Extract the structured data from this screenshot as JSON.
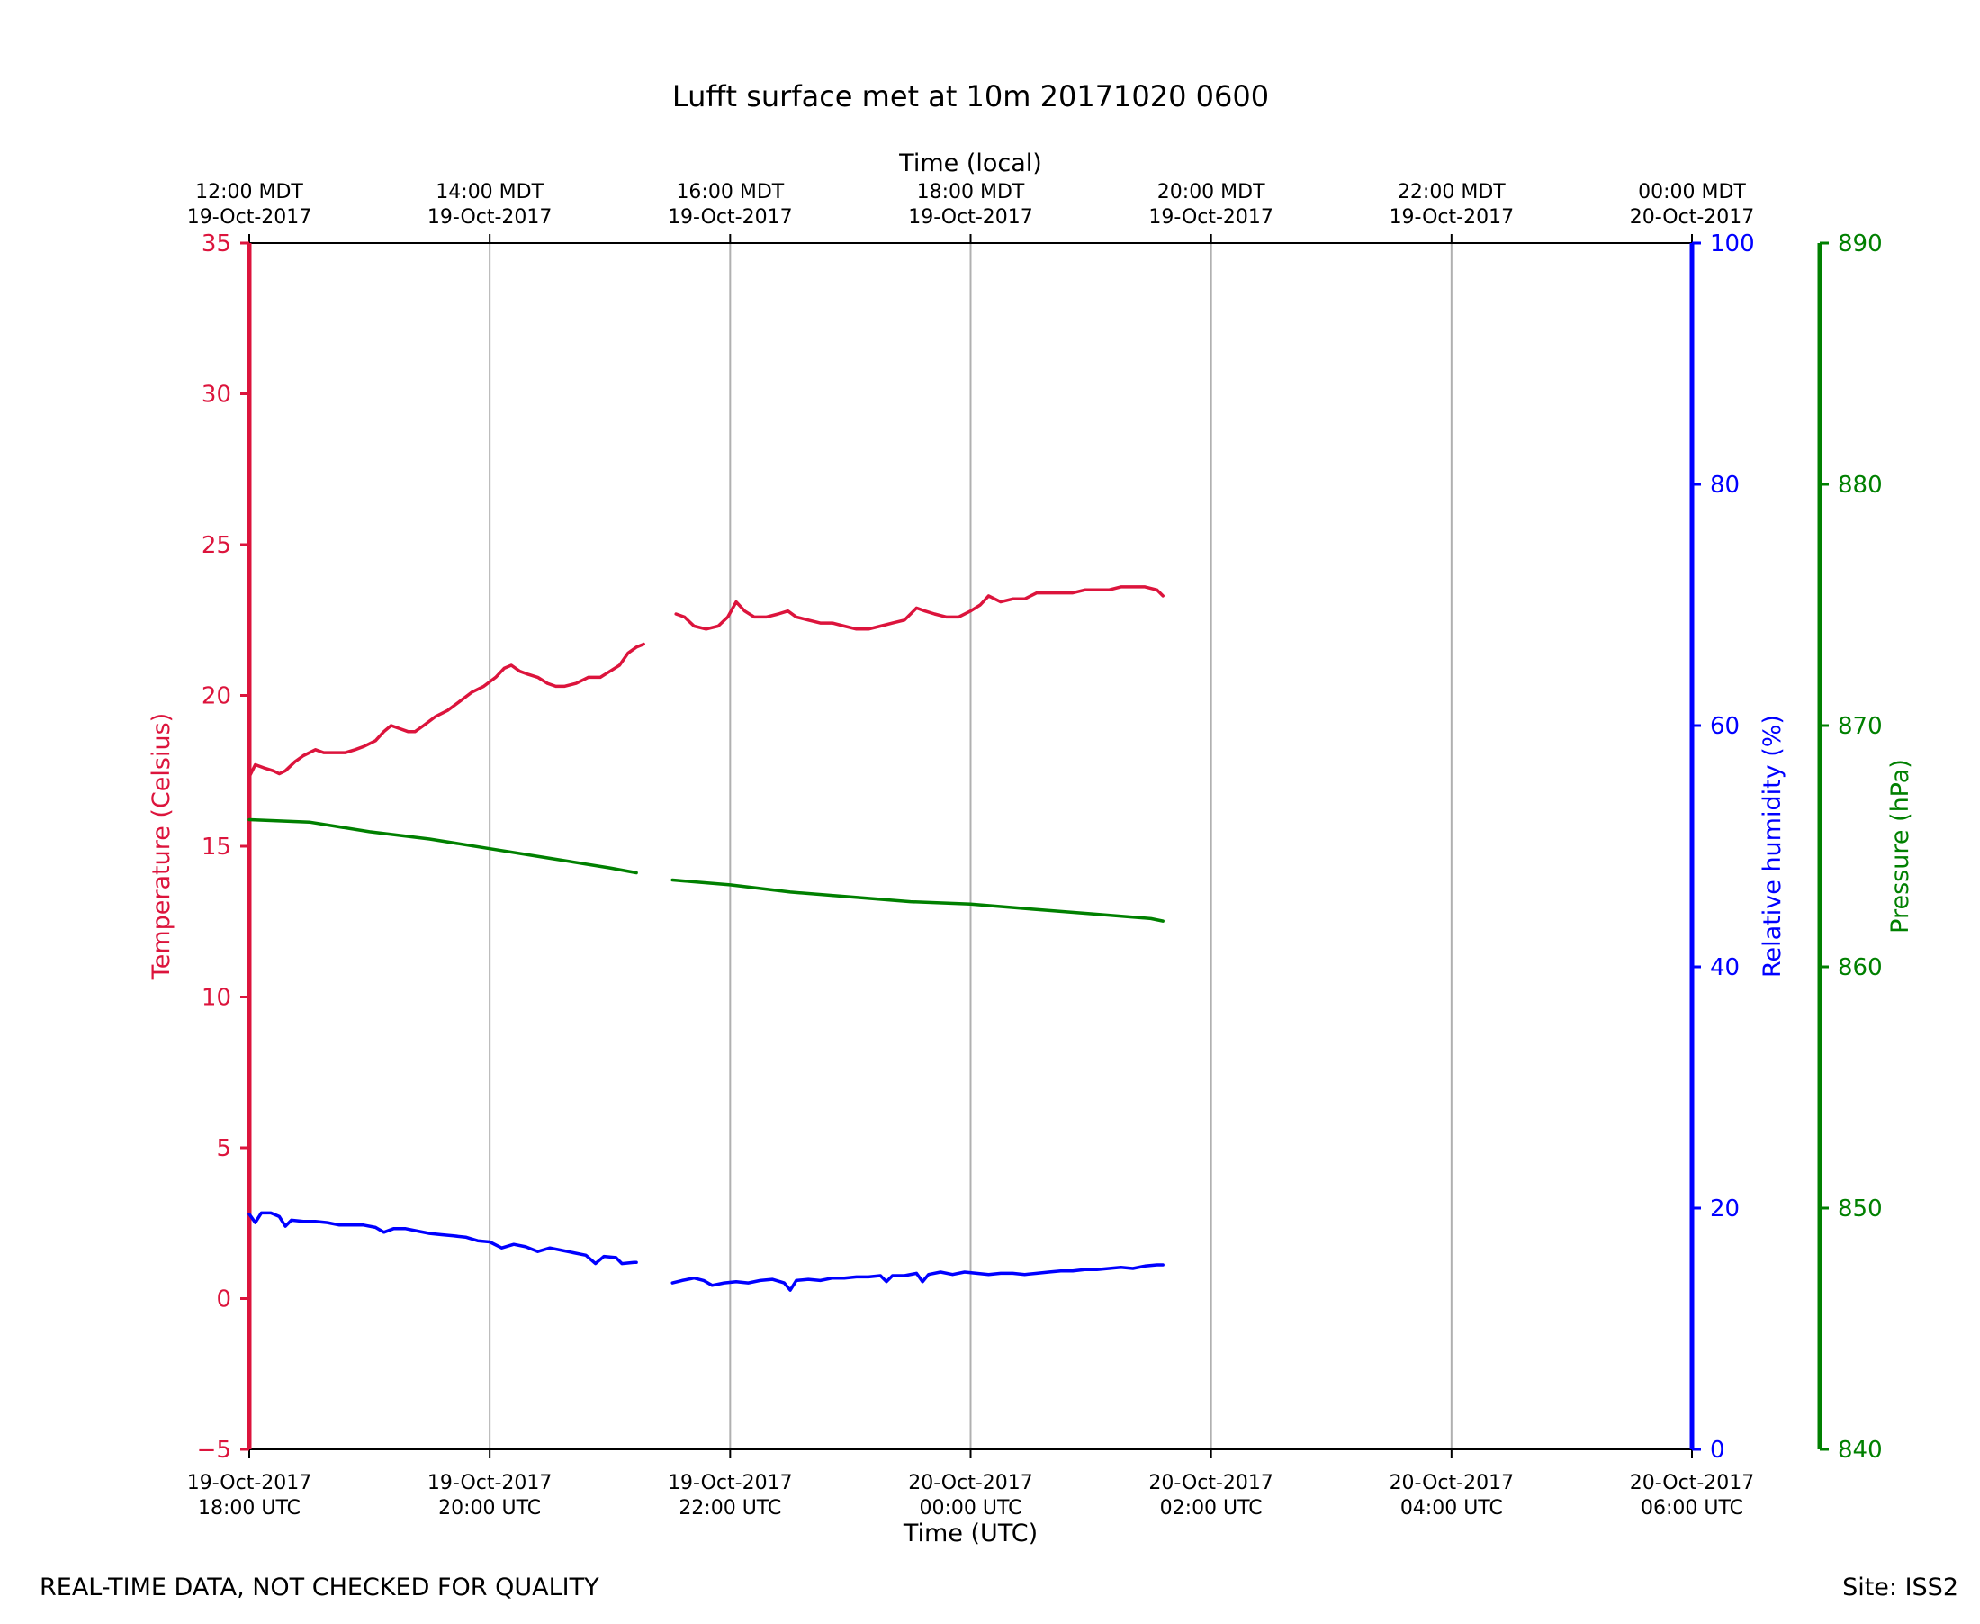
{
  "chart_data": {
    "type": "line",
    "title": "Lufft surface met at 10m 20171020 0600",
    "xlabel": "Time (UTC)",
    "x2label": "Time (local)",
    "x_ticks_utc": [
      [
        "19-Oct-2017",
        "18:00 UTC"
      ],
      [
        "19-Oct-2017",
        "20:00 UTC"
      ],
      [
        "19-Oct-2017",
        "22:00 UTC"
      ],
      [
        "20-Oct-2017",
        "00:00 UTC"
      ],
      [
        "20-Oct-2017",
        "02:00 UTC"
      ],
      [
        "20-Oct-2017",
        "04:00 UTC"
      ],
      [
        "20-Oct-2017",
        "06:00 UTC"
      ]
    ],
    "x_ticks_local": [
      [
        "12:00 MDT",
        "19-Oct-2017"
      ],
      [
        "14:00 MDT",
        "19-Oct-2017"
      ],
      [
        "16:00 MDT",
        "19-Oct-2017"
      ],
      [
        "18:00 MDT",
        "19-Oct-2017"
      ],
      [
        "20:00 MDT",
        "19-Oct-2017"
      ],
      [
        "22:00 MDT",
        "19-Oct-2017"
      ],
      [
        "00:00 MDT",
        "20-Oct-2017"
      ]
    ],
    "x_unit": "hours since 19-Oct-2017 18:00 UTC",
    "xlim": [
      0,
      12
    ],
    "grid": "vertical",
    "axes": [
      {
        "id": "temp",
        "label": "Temperature (Celsius)",
        "color": "#dc143c",
        "side": "left",
        "ylim": [
          -5,
          35
        ],
        "ticks": [
          "−5",
          "0",
          "5",
          "10",
          "15",
          "20",
          "25",
          "30",
          "35"
        ],
        "tick_values": [
          -5,
          0,
          5,
          10,
          15,
          20,
          25,
          30,
          35
        ]
      },
      {
        "id": "rh",
        "label": "Relative humidity (%)",
        "color": "#0000ff",
        "side": "right",
        "ylim": [
          0,
          100
        ],
        "ticks": [
          "0",
          "20",
          "40",
          "60",
          "80",
          "100"
        ],
        "tick_values": [
          0,
          20,
          40,
          60,
          80,
          100
        ]
      },
      {
        "id": "pres",
        "label": "Pressure (hPa)",
        "color": "#008000",
        "side": "right-outer",
        "ylim": [
          840,
          890
        ],
        "ticks": [
          "840",
          "850",
          "860",
          "870",
          "880",
          "890"
        ],
        "tick_values": [
          840,
          850,
          860,
          870,
          880,
          890
        ]
      }
    ],
    "series": [
      {
        "axis": "temp",
        "color": "#dc143c",
        "segments": [
          [
            [
              0.0,
              17.3
            ],
            [
              0.05,
              17.7
            ],
            [
              0.12,
              17.6
            ],
            [
              0.2,
              17.5
            ],
            [
              0.25,
              17.4
            ],
            [
              0.3,
              17.5
            ],
            [
              0.38,
              17.8
            ],
            [
              0.45,
              18.0
            ],
            [
              0.55,
              18.2
            ],
            [
              0.62,
              18.1
            ],
            [
              0.7,
              18.1
            ],
            [
              0.8,
              18.1
            ],
            [
              0.88,
              18.2
            ],
            [
              0.95,
              18.3
            ],
            [
              1.05,
              18.5
            ],
            [
              1.12,
              18.8
            ],
            [
              1.18,
              19.0
            ],
            [
              1.25,
              18.9
            ],
            [
              1.32,
              18.8
            ],
            [
              1.38,
              18.8
            ],
            [
              1.45,
              19.0
            ],
            [
              1.55,
              19.3
            ],
            [
              1.65,
              19.5
            ],
            [
              1.75,
              19.8
            ],
            [
              1.85,
              20.1
            ],
            [
              1.95,
              20.3
            ],
            [
              2.05,
              20.6
            ],
            [
              2.12,
              20.9
            ],
            [
              2.18,
              21.0
            ],
            [
              2.25,
              20.8
            ],
            [
              2.32,
              20.7
            ],
            [
              2.4,
              20.6
            ],
            [
              2.48,
              20.4
            ],
            [
              2.55,
              20.3
            ],
            [
              2.62,
              20.3
            ],
            [
              2.72,
              20.4
            ],
            [
              2.82,
              20.6
            ],
            [
              2.92,
              20.6
            ],
            [
              3.0,
              20.8
            ],
            [
              3.08,
              21.0
            ],
            [
              3.15,
              21.4
            ],
            [
              3.22,
              21.6
            ],
            [
              3.28,
              21.7
            ]
          ],
          [
            [
              3.55,
              22.7
            ],
            [
              3.62,
              22.6
            ],
            [
              3.7,
              22.3
            ],
            [
              3.8,
              22.2
            ],
            [
              3.9,
              22.3
            ],
            [
              3.98,
              22.6
            ],
            [
              4.05,
              23.1
            ],
            [
              4.12,
              22.8
            ],
            [
              4.2,
              22.6
            ],
            [
              4.3,
              22.6
            ],
            [
              4.4,
              22.7
            ],
            [
              4.48,
              22.8
            ],
            [
              4.55,
              22.6
            ],
            [
              4.65,
              22.5
            ],
            [
              4.75,
              22.4
            ],
            [
              4.85,
              22.4
            ],
            [
              4.95,
              22.3
            ],
            [
              5.05,
              22.2
            ],
            [
              5.15,
              22.2
            ],
            [
              5.25,
              22.3
            ],
            [
              5.35,
              22.4
            ],
            [
              5.45,
              22.5
            ],
            [
              5.55,
              22.9
            ],
            [
              5.62,
              22.8
            ],
            [
              5.7,
              22.7
            ],
            [
              5.8,
              22.6
            ],
            [
              5.9,
              22.6
            ],
            [
              6.0,
              22.8
            ],
            [
              6.08,
              23.0
            ],
            [
              6.15,
              23.3
            ],
            [
              6.25,
              23.1
            ],
            [
              6.35,
              23.2
            ],
            [
              6.45,
              23.2
            ],
            [
              6.55,
              23.4
            ],
            [
              6.65,
              23.4
            ],
            [
              6.75,
              23.4
            ],
            [
              6.85,
              23.4
            ],
            [
              6.95,
              23.5
            ],
            [
              7.05,
              23.5
            ],
            [
              7.15,
              23.5
            ],
            [
              7.25,
              23.6
            ],
            [
              7.35,
              23.6
            ],
            [
              7.45,
              23.6
            ],
            [
              7.55,
              23.5
            ],
            [
              7.6,
              23.3
            ]
          ]
        ]
      },
      {
        "axis": "pres",
        "color": "#008000",
        "segments": [
          [
            [
              0.0,
              866.1
            ],
            [
              0.5,
              866.0
            ],
            [
              1.0,
              865.6
            ],
            [
              1.5,
              865.3
            ],
            [
              2.0,
              864.9
            ],
            [
              2.5,
              864.5
            ],
            [
              3.0,
              864.1
            ],
            [
              3.22,
              863.9
            ]
          ],
          [
            [
              3.52,
              863.6
            ],
            [
              4.0,
              863.4
            ],
            [
              4.5,
              863.1
            ],
            [
              5.0,
              862.9
            ],
            [
              5.5,
              862.7
            ],
            [
              6.0,
              862.6
            ],
            [
              6.5,
              862.4
            ],
            [
              7.0,
              862.2
            ],
            [
              7.5,
              862.0
            ],
            [
              7.6,
              861.9
            ]
          ]
        ]
      },
      {
        "axis": "rh",
        "color": "#0000ff",
        "segments": [
          [
            [
              0.0,
              19.5
            ],
            [
              0.05,
              18.8
            ],
            [
              0.1,
              19.6
            ],
            [
              0.18,
              19.6
            ],
            [
              0.25,
              19.3
            ],
            [
              0.3,
              18.5
            ],
            [
              0.35,
              19.0
            ],
            [
              0.45,
              18.9
            ],
            [
              0.55,
              18.9
            ],
            [
              0.65,
              18.8
            ],
            [
              0.75,
              18.6
            ],
            [
              0.85,
              18.6
            ],
            [
              0.95,
              18.6
            ],
            [
              1.05,
              18.4
            ],
            [
              1.12,
              18.0
            ],
            [
              1.2,
              18.3
            ],
            [
              1.3,
              18.3
            ],
            [
              1.4,
              18.1
            ],
            [
              1.5,
              17.9
            ],
            [
              1.6,
              17.8
            ],
            [
              1.7,
              17.7
            ],
            [
              1.8,
              17.6
            ],
            [
              1.9,
              17.3
            ],
            [
              2.0,
              17.2
            ],
            [
              2.1,
              16.7
            ],
            [
              2.2,
              17.0
            ],
            [
              2.3,
              16.8
            ],
            [
              2.4,
              16.4
            ],
            [
              2.5,
              16.7
            ],
            [
              2.6,
              16.5
            ],
            [
              2.7,
              16.3
            ],
            [
              2.8,
              16.1
            ],
            [
              2.88,
              15.4
            ],
            [
              2.95,
              16.0
            ],
            [
              3.05,
              15.9
            ],
            [
              3.1,
              15.4
            ],
            [
              3.2,
              15.5
            ],
            [
              3.22,
              15.5
            ]
          ],
          [
            [
              3.52,
              13.8
            ],
            [
              3.6,
              14.0
            ],
            [
              3.7,
              14.2
            ],
            [
              3.78,
              14.0
            ],
            [
              3.85,
              13.6
            ],
            [
              3.95,
              13.8
            ],
            [
              4.05,
              13.9
            ],
            [
              4.15,
              13.8
            ],
            [
              4.25,
              14.0
            ],
            [
              4.35,
              14.1
            ],
            [
              4.45,
              13.8
            ],
            [
              4.5,
              13.2
            ],
            [
              4.55,
              14.0
            ],
            [
              4.65,
              14.1
            ],
            [
              4.75,
              14.0
            ],
            [
              4.85,
              14.2
            ],
            [
              4.95,
              14.2
            ],
            [
              5.05,
              14.3
            ],
            [
              5.15,
              14.3
            ],
            [
              5.25,
              14.4
            ],
            [
              5.3,
              13.9
            ],
            [
              5.35,
              14.4
            ],
            [
              5.45,
              14.4
            ],
            [
              5.55,
              14.6
            ],
            [
              5.6,
              13.9
            ],
            [
              5.65,
              14.5
            ],
            [
              5.75,
              14.7
            ],
            [
              5.85,
              14.5
            ],
            [
              5.95,
              14.7
            ],
            [
              6.05,
              14.6
            ],
            [
              6.15,
              14.5
            ],
            [
              6.25,
              14.6
            ],
            [
              6.35,
              14.6
            ],
            [
              6.45,
              14.5
            ],
            [
              6.55,
              14.6
            ],
            [
              6.65,
              14.7
            ],
            [
              6.75,
              14.8
            ],
            [
              6.85,
              14.8
            ],
            [
              6.95,
              14.9
            ],
            [
              7.05,
              14.9
            ],
            [
              7.15,
              15.0
            ],
            [
              7.25,
              15.1
            ],
            [
              7.35,
              15.0
            ],
            [
              7.45,
              15.2
            ],
            [
              7.55,
              15.3
            ],
            [
              7.6,
              15.3
            ]
          ]
        ]
      }
    ]
  },
  "footer": {
    "left": "REAL-TIME DATA, NOT CHECKED FOR QUALITY",
    "right": "Site: ISS2"
  }
}
